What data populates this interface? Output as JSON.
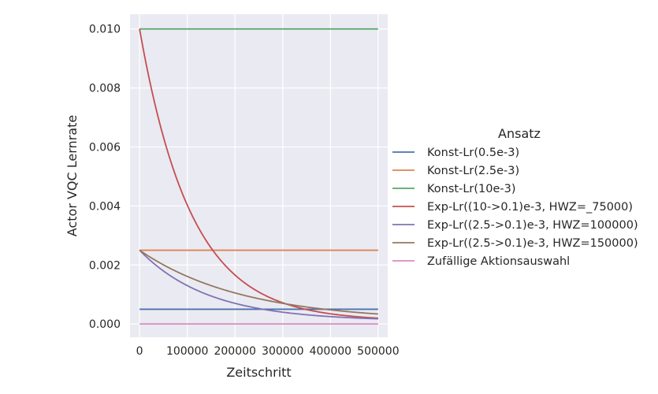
{
  "chart_data": {
    "type": "line",
    "title": "",
    "xlabel": "Zeitschritt",
    "ylabel": "Actor VQC Lernrate",
    "xlim": [
      -20000,
      520000
    ],
    "ylim": [
      -0.00045,
      0.0105
    ],
    "xticks": [
      0,
      100000,
      200000,
      300000,
      400000,
      500000
    ],
    "xtick_labels": [
      "0",
      "100000",
      "200000",
      "300000",
      "400000",
      "500000"
    ],
    "yticks": [
      0.0,
      0.002,
      0.004,
      0.006,
      0.008,
      0.01
    ],
    "ytick_labels": [
      "0.000",
      "0.002",
      "0.004",
      "0.006",
      "0.008",
      "0.010"
    ],
    "grid": true,
    "background": "#eaeaf2",
    "legend": {
      "title": "Ansatz",
      "placement": "outside-right"
    },
    "series": [
      {
        "name": "Konst-Lr(0.5e-3)",
        "color": "#4c72b0",
        "kind": "const",
        "value": 0.0005
      },
      {
        "name": "Konst-Lr(2.5e-3)",
        "color": "#dd8452",
        "kind": "const",
        "value": 0.0025
      },
      {
        "name": "Konst-Lr(10e-3)",
        "color": "#55a868",
        "kind": "const",
        "value": 0.01
      },
      {
        "name": "Exp-Lr((10->0.1)e-3, HWZ=_75000)",
        "color": "#c44e52",
        "kind": "exp",
        "start": 0.01,
        "end": 0.0001,
        "half_life": 75000
      },
      {
        "name": "Exp-Lr((2.5->0.1)e-3, HWZ=100000)",
        "color": "#8172b3",
        "kind": "exp",
        "start": 0.0025,
        "end": 0.0001,
        "half_life": 100000
      },
      {
        "name": "Exp-Lr((2.5->0.1)e-3, HWZ=150000)",
        "color": "#937860",
        "kind": "exp",
        "start": 0.0025,
        "end": 0.0001,
        "half_life": 150000
      },
      {
        "name": "Zufällige Aktionsauswahl",
        "color": "#da8bc3",
        "kind": "const",
        "value": 0.0
      }
    ],
    "x_range": [
      0,
      500000
    ]
  }
}
